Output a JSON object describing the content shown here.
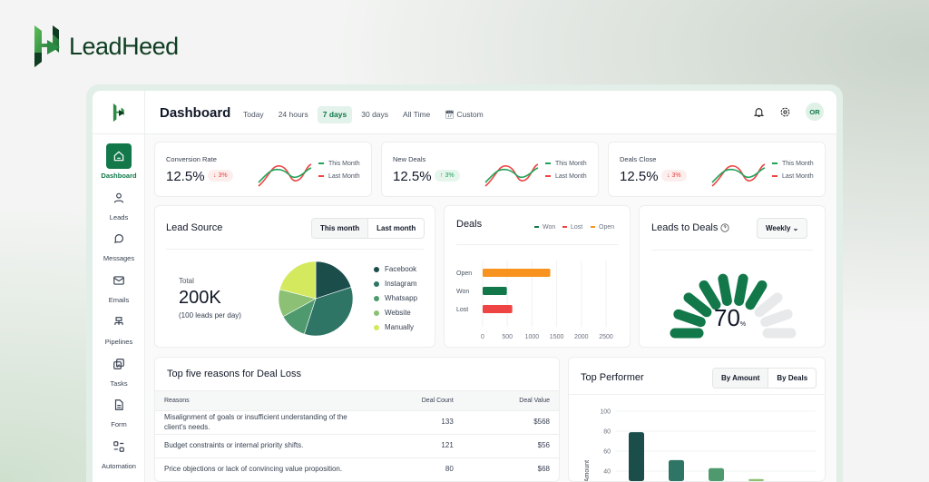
{
  "brand": {
    "name": "LeadHeed"
  },
  "header": {
    "title": "Dashboard",
    "filters": [
      "Today",
      "24 hours",
      "7 days",
      "30 days",
      "All Time",
      "Custom"
    ],
    "selected_filter": "7 days",
    "avatar": "OR"
  },
  "sidebar": {
    "items": [
      {
        "label": "Dashboard",
        "icon": "home-icon",
        "active": true
      },
      {
        "label": "Leads",
        "icon": "user-icon"
      },
      {
        "label": "Messages",
        "icon": "chat-icon"
      },
      {
        "label": "Emails",
        "icon": "mail-icon"
      },
      {
        "label": "Pipelines",
        "icon": "pipeline-icon"
      },
      {
        "label": "Tasks",
        "icon": "tasks-icon"
      },
      {
        "label": "Form",
        "icon": "file-icon"
      },
      {
        "label": "Automation",
        "icon": "automation-icon"
      }
    ]
  },
  "stats": [
    {
      "label": "Conversion Rate",
      "value": "12.5%",
      "change": "3%",
      "direction": "down"
    },
    {
      "label": "New Deals",
      "value": "12.5%",
      "change": "3%",
      "direction": "up"
    },
    {
      "label": "Deals Close",
      "value": "12.5%",
      "change": "3%",
      "direction": "down"
    }
  ],
  "stat_legend": {
    "this_month": "This Month",
    "last_month": "Last Month"
  },
  "lead_source": {
    "title": "Lead Source",
    "tabs": [
      "This month",
      "Last month"
    ],
    "total_label": "Total",
    "total": "200K",
    "subtitle": "(100 leads per day)",
    "chart_data": {
      "type": "pie",
      "categories": [
        "Facebook",
        "Instagram",
        "Whatsapp",
        "Website",
        "Manually"
      ],
      "values": [
        20,
        35,
        12,
        12,
        21
      ],
      "colors": [
        "#1b4d4b",
        "#2f7565",
        "#4e9a6e",
        "#8cc074",
        "#d5e95e"
      ]
    }
  },
  "deals": {
    "title": "Deals",
    "chart_data": {
      "type": "bar",
      "orientation": "horizontal",
      "categories": [
        "Open",
        "Won",
        "Lost"
      ],
      "values": [
        1370,
        490,
        600
      ],
      "colors": [
        "#f7931e",
        "#12784a",
        "#ef4444"
      ],
      "xticks": [
        0,
        500,
        1000,
        1500,
        2000,
        2500
      ],
      "xlim": [
        0,
        2500
      ],
      "legend": [
        {
          "name": "Won",
          "color": "#12784a"
        },
        {
          "name": "Lost",
          "color": "#ef4444"
        },
        {
          "name": "Open",
          "color": "#f7931e"
        }
      ]
    }
  },
  "leads_to_deals": {
    "title": "Leads to Deals",
    "period": "Weekly",
    "value": "70",
    "unit": "%",
    "segments_total": 10,
    "segments_filled": 7
  },
  "loss_reasons": {
    "title": "Top five reasons for Deal Loss",
    "columns": [
      "Reasons",
      "Deal Count",
      "Deal Value"
    ],
    "rows": [
      [
        "Misalignment of goals or insufficient understanding of the client's needs.",
        "133",
        "$568"
      ],
      [
        "Budget constraints or internal priority shifts.",
        "121",
        "$56"
      ],
      [
        "Price objections or lack of convincing value proposition.",
        "80",
        "$68"
      ]
    ]
  },
  "top_performer": {
    "title": "Top Performer",
    "tabs": [
      "By Amount",
      "By Deals"
    ],
    "chart_data": {
      "type": "bar",
      "ylabel": "Amount",
      "yticks": [
        40,
        60,
        80,
        100
      ],
      "ylim": [
        0,
        100
      ],
      "values": [
        79,
        51,
        43,
        32
      ],
      "colors": [
        "#1b4d4b",
        "#2f7565",
        "#4e9a6e",
        "#8cc074"
      ]
    }
  }
}
